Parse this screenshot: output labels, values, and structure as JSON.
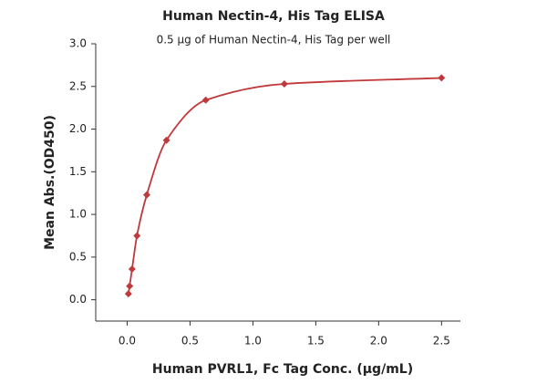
{
  "chart_data": {
    "type": "scatter",
    "title": "Human Nectin-4, His Tag ELISA",
    "subtitle": "0.5 µg of Human Nectin-4, His Tag per well",
    "x_label": "Human PVRL1, Fc Tag Conc. (µg/mL)",
    "y_label": "Mean Abs.(OD450)",
    "x": [
      0.0098,
      0.0195,
      0.039,
      0.078,
      0.156,
      0.3125,
      0.625,
      1.25,
      2.5
    ],
    "values": [
      0.07,
      0.16,
      0.36,
      0.75,
      1.23,
      1.87,
      2.34,
      2.53,
      2.6
    ],
    "color": "#c0393b",
    "xlim": [
      -0.25,
      2.65
    ],
    "ylim": [
      -0.25,
      3.0
    ],
    "xticks": [
      {
        "value": 0,
        "label": "0.0"
      },
      {
        "value": 0.5,
        "label": "0.5"
      },
      {
        "value": 1,
        "label": "1.0"
      },
      {
        "value": 1.5,
        "label": "1.5"
      },
      {
        "value": 2,
        "label": "2.0"
      },
      {
        "value": 2.5,
        "label": "2.5"
      }
    ],
    "yticks": [
      {
        "value": 0,
        "label": "0.0"
      },
      {
        "value": 0.5,
        "label": "0.5"
      },
      {
        "value": 1,
        "label": "1.0"
      },
      {
        "value": 1.5,
        "label": "1.5"
      },
      {
        "value": 2,
        "label": "2.0"
      },
      {
        "value": 2.5,
        "label": "2.5"
      },
      {
        "value": 3,
        "label": "3.0"
      }
    ],
    "fit_curve": true
  }
}
